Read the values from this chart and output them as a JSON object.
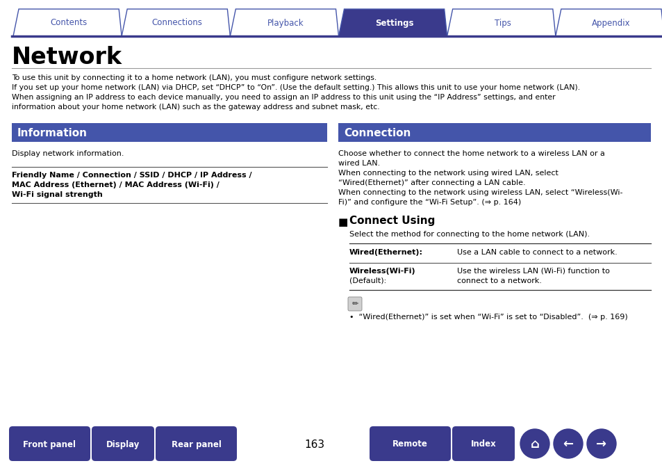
{
  "bg_color": "#ffffff",
  "tab_color_active": "#3a3a8c",
  "tab_color_inactive": "#ffffff",
  "tab_border_color": "#4455aa",
  "tab_text_active": "#ffffff",
  "tab_text_inactive": "#4455aa",
  "tabs": [
    "Contents",
    "Connections",
    "Playback",
    "Settings",
    "Tips",
    "Appendix"
  ],
  "active_tab": 3,
  "title": "Network",
  "intro_lines": [
    "To use this unit by connecting it to a home network (LAN), you must configure network settings.",
    "If you set up your home network (LAN) via DHCP, set “DHCP” to “On”. (Use the default setting.) This allows this unit to use your home network (LAN).",
    "When assigning an IP address to each device manually, you need to assign an IP address to this unit using the “IP Address” settings, and enter",
    "information about your home network (LAN) such as the gateway address and subnet mask, etc."
  ],
  "section_header_color": "#4455aa",
  "section_header_text_color": "#ffffff",
  "section1_title": "Information",
  "section1_body": "Display network information.",
  "section1_bold_lines": [
    "Friendly Name / Connection / SSID / DHCP / IP Address /",
    "MAC Address (Ethernet) / MAC Address (Wi-Fi) /",
    "Wi-Fi signal strength"
  ],
  "section2_title": "Connection",
  "section2_lines": [
    "Choose whether to connect the home network to a wireless LAN or a",
    "wired LAN.",
    "When connecting to the network using wired LAN, select",
    "“Wired(Ethernet)” after connecting a LAN cable.",
    "When connecting to the network using wireless LAN, select “Wireless(Wi-",
    "Fi)” and configure the “Wi-Fi Setup”. (⇒ p. 164)"
  ],
  "connect_using_title": "Connect Using",
  "connect_using_subtitle": "Select the method for connecting to the home network (LAN).",
  "table_rows": [
    {
      "bold": "Wired(Ethernet):",
      "desc": "Use a LAN cable to connect to a network."
    },
    {
      "bold": "Wireless(Wi-Fi)\n(Default):",
      "desc": "Use the wireless LAN (Wi-Fi) function to\nconnect to a network."
    }
  ],
  "note_line": "•  “Wired(Ethernet)” is set when “Wi-Fi” is set to “Disabled”.  (⇒ p. 169)",
  "bottom_buttons": [
    "Front panel",
    "Display",
    "Rear panel",
    "Remote",
    "Index"
  ],
  "page_number": "163",
  "button_color": "#3a3a8c",
  "button_text_color": "#ffffff",
  "header_line_color": "#3a3a8c",
  "tab_line_color": "#3a3a8c"
}
